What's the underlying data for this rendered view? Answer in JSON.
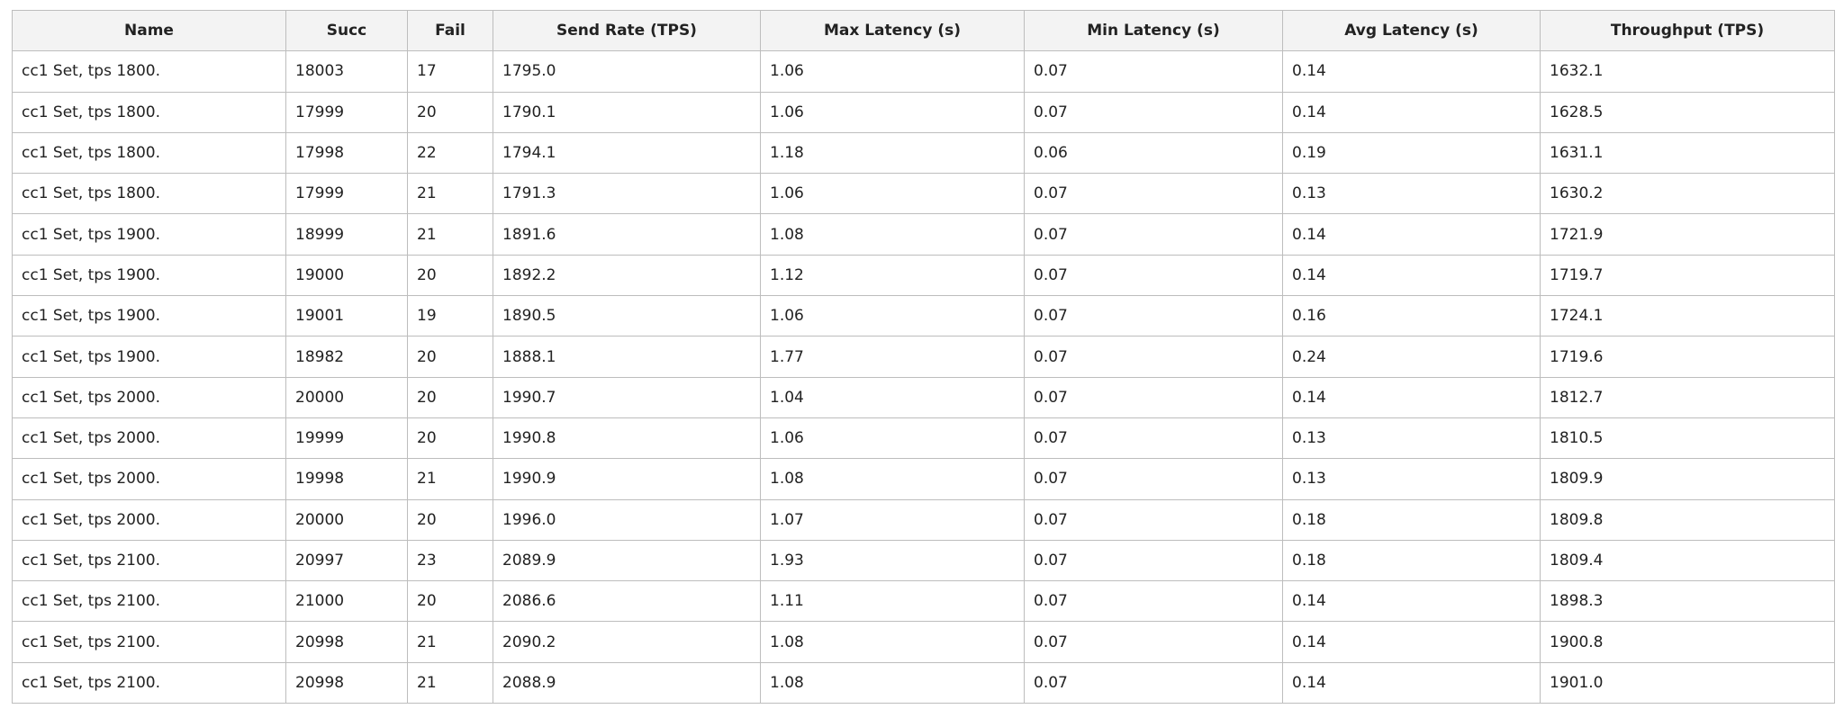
{
  "table": {
    "headers": [
      "Name",
      "Succ",
      "Fail",
      "Send Rate (TPS)",
      "Max Latency (s)",
      "Min Latency (s)",
      "Avg Latency (s)",
      "Throughput (TPS)"
    ],
    "rows": [
      [
        "cc1 Set, tps 1800.",
        "18003",
        "17",
        "1795.0",
        "1.06",
        "0.07",
        "0.14",
        "1632.1"
      ],
      [
        "cc1 Set, tps 1800.",
        "17999",
        "20",
        "1790.1",
        "1.06",
        "0.07",
        "0.14",
        "1628.5"
      ],
      [
        "cc1 Set, tps 1800.",
        "17998",
        "22",
        "1794.1",
        "1.18",
        "0.06",
        "0.19",
        "1631.1"
      ],
      [
        "cc1 Set, tps 1800.",
        "17999",
        "21",
        "1791.3",
        "1.06",
        "0.07",
        "0.13",
        "1630.2"
      ],
      [
        "cc1 Set, tps 1900.",
        "18999",
        "21",
        "1891.6",
        "1.08",
        "0.07",
        "0.14",
        "1721.9"
      ],
      [
        "cc1 Set, tps 1900.",
        "19000",
        "20",
        "1892.2",
        "1.12",
        "0.07",
        "0.14",
        "1719.7"
      ],
      [
        "cc1 Set, tps 1900.",
        "19001",
        "19",
        "1890.5",
        "1.06",
        "0.07",
        "0.16",
        "1724.1"
      ],
      [
        "cc1 Set, tps 1900.",
        "18982",
        "20",
        "1888.1",
        "1.77",
        "0.07",
        "0.24",
        "1719.6"
      ],
      [
        "cc1 Set, tps 2000.",
        "20000",
        "20",
        "1990.7",
        "1.04",
        "0.07",
        "0.14",
        "1812.7"
      ],
      [
        "cc1 Set, tps 2000.",
        "19999",
        "20",
        "1990.8",
        "1.06",
        "0.07",
        "0.13",
        "1810.5"
      ],
      [
        "cc1 Set, tps 2000.",
        "19998",
        "21",
        "1990.9",
        "1.08",
        "0.07",
        "0.13",
        "1809.9"
      ],
      [
        "cc1 Set, tps 2000.",
        "20000",
        "20",
        "1996.0",
        "1.07",
        "0.07",
        "0.18",
        "1809.8"
      ],
      [
        "cc1 Set, tps 2100.",
        "20997",
        "23",
        "2089.9",
        "1.93",
        "0.07",
        "0.18",
        "1809.4"
      ],
      [
        "cc1 Set, tps 2100.",
        "21000",
        "20",
        "2086.6",
        "1.11",
        "0.07",
        "0.14",
        "1898.3"
      ],
      [
        "cc1 Set, tps 2100.",
        "20998",
        "21",
        "2090.2",
        "1.08",
        "0.07",
        "0.14",
        "1900.8"
      ],
      [
        "cc1 Set, tps 2100.",
        "20998",
        "21",
        "2088.9",
        "1.08",
        "0.07",
        "0.14",
        "1901.0"
      ]
    ]
  },
  "colors": {
    "header_background": "#f3f3f3",
    "border": "#bdbdbd",
    "text": "#222222",
    "page_background": "#ffffff"
  }
}
